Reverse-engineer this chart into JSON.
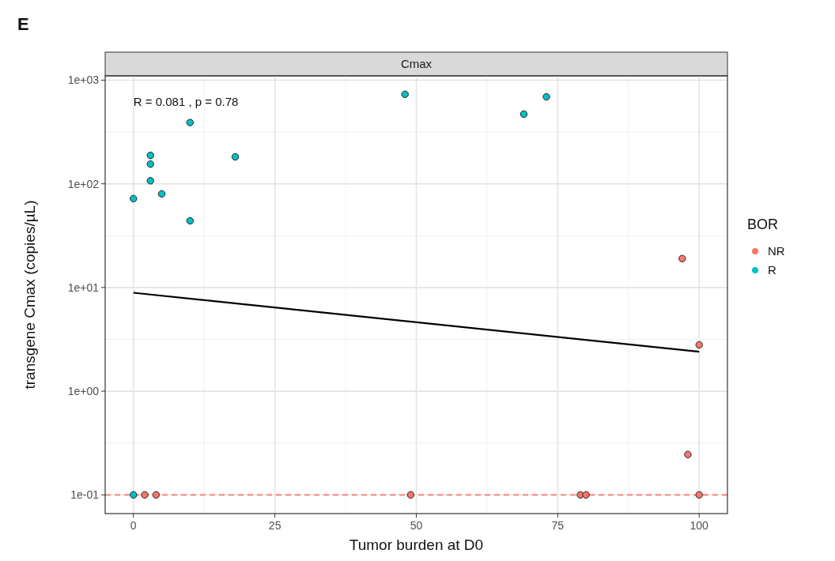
{
  "chart_data": {
    "type": "scatter",
    "title": "Cmax",
    "xlabel": "Tumor burden at D0",
    "ylabel": "transgene Cmax (copies/µL)",
    "legend_title": "BOR",
    "legend": "right",
    "log": "y",
    "grid": true,
    "marker": "circle",
    "annotations": [
      "E",
      "R = 0.081 , p = 0.78"
    ],
    "xlim": [
      -5,
      105
    ],
    "xticks": [
      0,
      25,
      50,
      75,
      100
    ],
    "ylim": [
      0.066,
      1100
    ],
    "yticks": [
      {
        "value": 0.1,
        "label": "1e-01"
      },
      {
        "value": 1,
        "label": "1e+00"
      },
      {
        "value": 10,
        "label": "1e+01"
      },
      {
        "value": 100,
        "label": "1e+02"
      },
      {
        "value": 1000,
        "label": "1e+03"
      }
    ],
    "ref_lines": [
      {
        "axis": "y",
        "value": 0.1,
        "color": "#f8766d",
        "line_style": "dashed"
      }
    ],
    "series": [
      {
        "name": "NR",
        "color": "#f8766d",
        "x": [
          2,
          4,
          49,
          79,
          80,
          100,
          97,
          98,
          100
        ],
        "values": [
          0.1,
          0.1,
          0.1,
          0.1,
          0.1,
          0.1,
          19,
          0.245,
          2.8
        ]
      },
      {
        "name": "R",
        "color": "#00bfc4",
        "x": [
          0,
          0,
          3,
          3,
          3,
          5,
          10,
          10,
          18,
          48,
          69,
          73
        ],
        "values": [
          0.1,
          72,
          188,
          155,
          107,
          80,
          390,
          44,
          182,
          730,
          470,
          690
        ]
      },
      {
        "type": "line",
        "color": "#000000",
        "marker": "none",
        "line_style": "solid",
        "x": [
          0,
          100
        ],
        "values": [
          8.9,
          2.4
        ]
      }
    ]
  }
}
